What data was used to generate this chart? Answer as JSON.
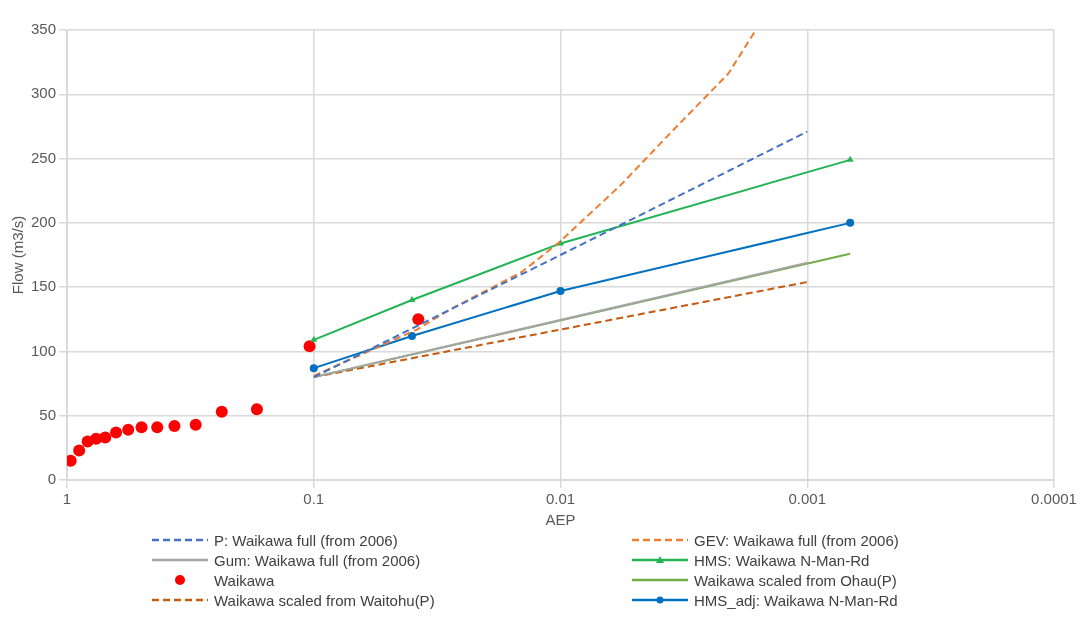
{
  "chart_data": {
    "type": "line",
    "xlabel": "AEP",
    "ylabel": "Flow (m3/s)",
    "log": "x",
    "xlim": [
      1,
      0.0001
    ],
    "xticks": [
      1,
      0.1,
      0.01,
      0.001,
      0.0001
    ],
    "ylim": [
      0,
      350
    ],
    "yticks": [
      0,
      50,
      100,
      150,
      200,
      250,
      300,
      350
    ],
    "grid": true,
    "legend": "bottom",
    "series": [
      {
        "name": "P: Waikawa full (from 2006)",
        "color": "#4472c4",
        "line_style": "dashed",
        "marker": "none",
        "x": [
          0.1,
          0.01,
          0.001
        ],
        "values": [
          80,
          175,
          271
        ]
      },
      {
        "name": "GEV: Waikawa full (from 2006)",
        "color": "#ed7d31",
        "line_style": "dashed",
        "marker": "none",
        "x": [
          0.1,
          0.0382,
          0.0278,
          0.0143,
          0.0101,
          0.00573,
          0.00346,
          0.00209,
          0.00164
        ],
        "values": [
          81,
          117,
          133,
          162,
          185,
          229,
          273,
          316,
          348
        ]
      },
      {
        "name": "Gum: Waikawa full (from 2006)",
        "color": "#a5a5a5",
        "line_style": "solid",
        "marker": "none",
        "x": [
          0.1,
          0.001
        ],
        "values": [
          80,
          169
        ]
      },
      {
        "name": "HMS: Waikawa N-Man-Rd",
        "color": "#22b455",
        "line_style": "solid",
        "marker": "triangle",
        "x": [
          0.1,
          0.04,
          0.01,
          0.00067
        ],
        "values": [
          109,
          140,
          184,
          249
        ]
      },
      {
        "name": "Waikawa",
        "type": "scatter",
        "color": "#ff0000",
        "marker": "circle",
        "x": [
          0.966,
          0.893,
          0.825,
          0.762,
          0.7,
          0.633,
          0.565,
          0.499,
          0.431,
          0.367,
          0.301,
          0.236,
          0.17,
          0.104,
          0.0377
        ],
        "values": [
          15,
          23,
          30,
          32,
          33,
          37,
          39,
          41,
          41,
          42,
          43,
          53,
          55,
          104,
          125
        ]
      },
      {
        "name": "Waikawa scaled from Ohau(P)",
        "color": "#70ad47",
        "line_style": "solid",
        "marker": "none",
        "x": [
          0.1,
          0.00067
        ],
        "values": [
          80,
          176
        ]
      },
      {
        "name": "Waikawa scaled from Waitohu(P)",
        "color": "#c55a11",
        "line_style": "dashed",
        "marker": "none",
        "x": [
          0.1,
          0.001
        ],
        "values": [
          80,
          154
        ]
      },
      {
        "name": "HMS_adj: Waikawa N-Man-Rd",
        "color": "#0070c0",
        "line_style": "solid",
        "marker": "circle",
        "x": [
          0.1,
          0.04,
          0.01,
          0.00067
        ],
        "values": [
          87,
          112,
          147,
          200
        ]
      }
    ]
  }
}
